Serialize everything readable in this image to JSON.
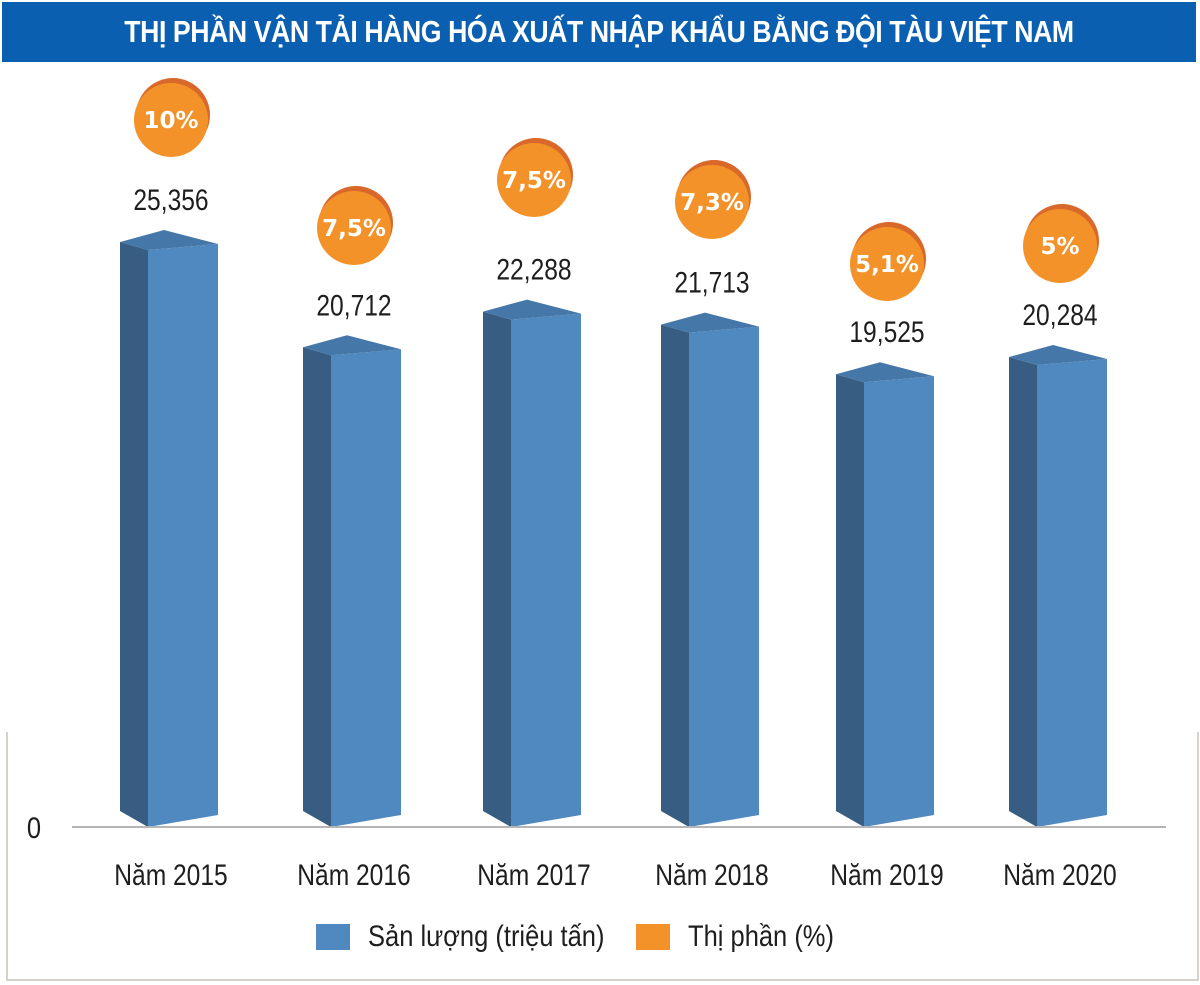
{
  "title": "THỊ PHẦN VẬN TẢI HÀNG HÓA XUẤT NHẬP KHẨU BẰNG ĐỘI TÀU VIỆT NAM",
  "colors": {
    "title_bg": "#0a5fb0",
    "bar_front": "#5089bf",
    "bar_side": "#375d82",
    "bar_top": "#4577a8",
    "bubble": "#f4922a",
    "bubble_rim": "#d9692a",
    "axis": "#b5b5b5"
  },
  "chart_data": {
    "type": "bar",
    "title": "THỊ PHẦN VẬN TẢI HÀNG HÓA XUẤT NHẬP KHẨU BẰNG ĐỘI TÀU VIỆT NAM",
    "xlabel": "",
    "ylabel": "",
    "ylim": [
      0,
      25.356
    ],
    "y_tick_labels": [
      "0"
    ],
    "grid": false,
    "legend_position": "bottom",
    "categories": [
      "Năm 2015",
      "Năm 2016",
      "Năm 2017",
      "Năm 2018",
      "Năm 2019",
      "Năm 2020"
    ],
    "series": [
      {
        "name": "Sản lượng (triệu tấn)",
        "values": [
          25.356,
          20.712,
          22.288,
          21.713,
          19.525,
          20.284
        ],
        "labels": [
          "25,356",
          "20,712",
          "22,288",
          "21,713",
          "19,525",
          "20,284"
        ]
      },
      {
        "name": "Thị phần (%)",
        "values": [
          10,
          7.5,
          7.5,
          7.3,
          5.1,
          5
        ],
        "labels": [
          "10%",
          "7,5%",
          "7,5%",
          "7,3%",
          "5,1%",
          "5%"
        ]
      }
    ]
  },
  "legend": {
    "items": [
      {
        "label": "Sản lượng (triệu tấn)",
        "color": "#5089bf"
      },
      {
        "label": "Thị phần (%)",
        "color": "#f4922a"
      }
    ]
  }
}
